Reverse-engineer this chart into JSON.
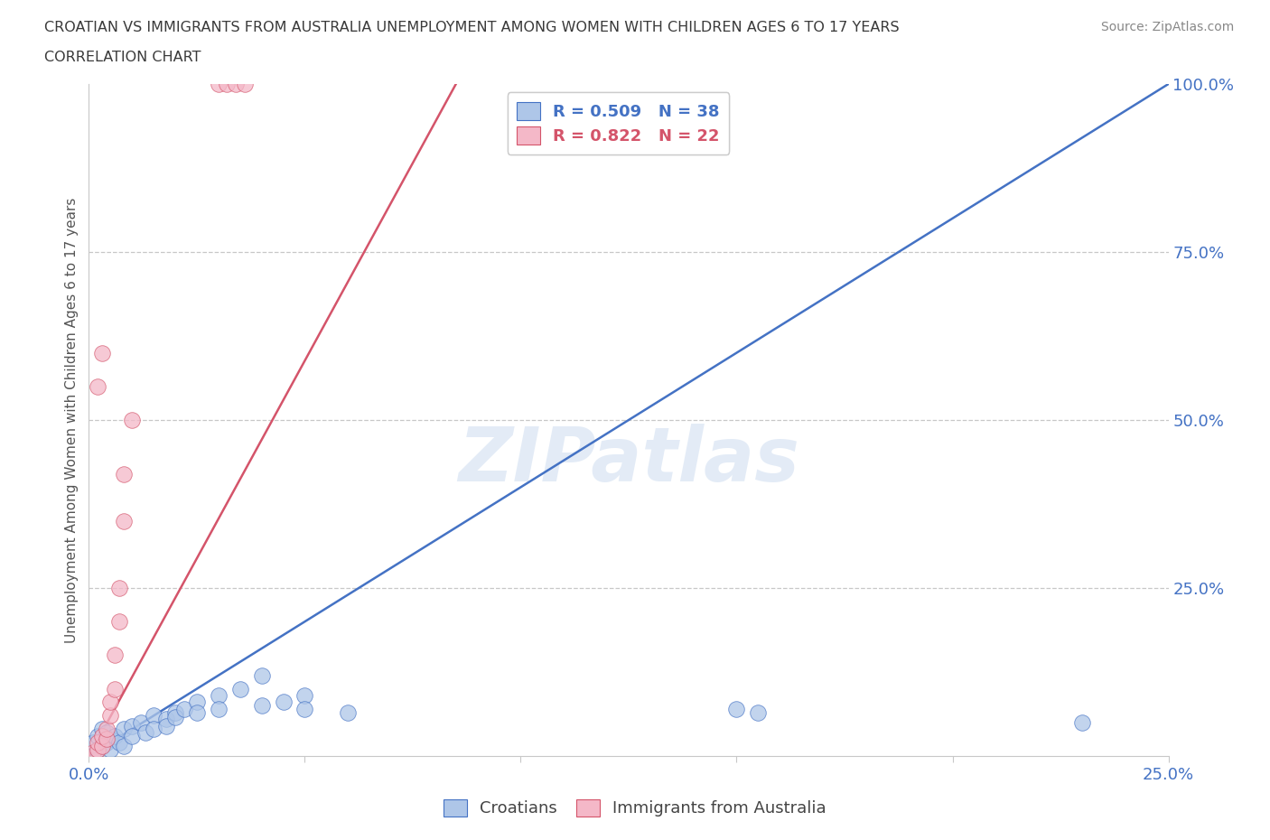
{
  "title_line1": "CROATIAN VS IMMIGRANTS FROM AUSTRALIA UNEMPLOYMENT AMONG WOMEN WITH CHILDREN AGES 6 TO 17 YEARS",
  "title_line2": "CORRELATION CHART",
  "source_text": "Source: ZipAtlas.com",
  "ylabel": "Unemployment Among Women with Children Ages 6 to 17 years",
  "xlim": [
    0.0,
    0.25
  ],
  "ylim": [
    0.0,
    1.0
  ],
  "blue_color": "#aec6e8",
  "pink_color": "#f4b8c8",
  "blue_line_color": "#4472c4",
  "pink_line_color": "#d4546a",
  "R_blue": 0.509,
  "N_blue": 38,
  "R_pink": 0.822,
  "N_pink": 22,
  "legend_label_blue": "Croatians",
  "legend_label_pink": "Immigrants from Australia",
  "watermark": "ZIPatlas",
  "title_color": "#3a3a3a",
  "axis_label_color": "#4472c4",
  "grid_color": "#c8c8c8",
  "blue_line_x": [
    0.0,
    0.25
  ],
  "blue_line_y": [
    0.0,
    1.0
  ],
  "pink_line_x": [
    0.0,
    0.085
  ],
  "pink_line_y": [
    0.0,
    1.0
  ],
  "blue_points": [
    [
      0.001,
      0.02
    ],
    [
      0.002,
      0.01
    ],
    [
      0.002,
      0.03
    ],
    [
      0.003,
      0.015
    ],
    [
      0.003,
      0.04
    ],
    [
      0.004,
      0.02
    ],
    [
      0.004,
      0.035
    ],
    [
      0.005,
      0.025
    ],
    [
      0.005,
      0.01
    ],
    [
      0.006,
      0.03
    ],
    [
      0.007,
      0.02
    ],
    [
      0.008,
      0.04
    ],
    [
      0.008,
      0.015
    ],
    [
      0.01,
      0.045
    ],
    [
      0.01,
      0.03
    ],
    [
      0.012,
      0.05
    ],
    [
      0.013,
      0.035
    ],
    [
      0.015,
      0.06
    ],
    [
      0.015,
      0.04
    ],
    [
      0.018,
      0.055
    ],
    [
      0.018,
      0.045
    ],
    [
      0.02,
      0.065
    ],
    [
      0.02,
      0.058
    ],
    [
      0.022,
      0.07
    ],
    [
      0.025,
      0.08
    ],
    [
      0.025,
      0.065
    ],
    [
      0.03,
      0.09
    ],
    [
      0.03,
      0.07
    ],
    [
      0.035,
      0.1
    ],
    [
      0.04,
      0.12
    ],
    [
      0.04,
      0.075
    ],
    [
      0.045,
      0.08
    ],
    [
      0.05,
      0.09
    ],
    [
      0.05,
      0.07
    ],
    [
      0.06,
      0.065
    ],
    [
      0.15,
      0.07
    ],
    [
      0.155,
      0.065
    ],
    [
      0.23,
      0.05
    ]
  ],
  "pink_points": [
    [
      0.001,
      0.005
    ],
    [
      0.002,
      0.01
    ],
    [
      0.002,
      0.02
    ],
    [
      0.003,
      0.015
    ],
    [
      0.003,
      0.03
    ],
    [
      0.004,
      0.025
    ],
    [
      0.004,
      0.04
    ],
    [
      0.005,
      0.06
    ],
    [
      0.005,
      0.08
    ],
    [
      0.006,
      0.1
    ],
    [
      0.006,
      0.15
    ],
    [
      0.007,
      0.2
    ],
    [
      0.007,
      0.25
    ],
    [
      0.008,
      0.35
    ],
    [
      0.008,
      0.42
    ],
    [
      0.01,
      0.5
    ],
    [
      0.002,
      0.55
    ],
    [
      0.003,
      0.6
    ],
    [
      0.03,
      1.0
    ],
    [
      0.032,
      1.0
    ],
    [
      0.034,
      1.0
    ],
    [
      0.036,
      1.0
    ]
  ]
}
